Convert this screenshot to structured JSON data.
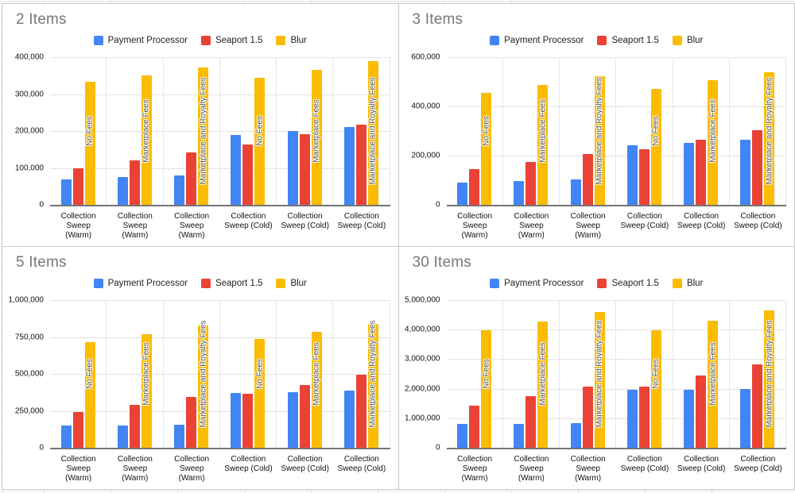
{
  "sheet": {
    "background": "#ffffff",
    "gridline_color": "#e2e5e2"
  },
  "panel_style": {
    "background": "#ffffff",
    "border_color": "#c9c9c9",
    "title_color": "#787878",
    "axis_color": "#757575",
    "gridline_color": "#e3e3e3"
  },
  "legend": {
    "position": "top",
    "items": [
      {
        "label": "Payment Processor",
        "color": "#4285F4"
      },
      {
        "label": "Seaport 1.5",
        "color": "#EA4335"
      },
      {
        "label": "Blur",
        "color": "#FBBC04"
      }
    ]
  },
  "categories_lines": [
    [
      "Collection",
      "Sweep",
      "(Warm)"
    ],
    [
      "Collection",
      "Sweep",
      "(Warm)"
    ],
    [
      "Collection",
      "Sweep",
      "(Warm)"
    ],
    [
      "Collection",
      "Sweep (Cold)"
    ],
    [
      "Collection",
      "Sweep (Cold)"
    ],
    [
      "Collection",
      "Sweep (Cold)"
    ]
  ],
  "chart_data": [
    {
      "type": "bar",
      "title": "2 Items",
      "categories": [
        "Collection Sweep (Warm)",
        "Collection Sweep (Warm)",
        "Collection Sweep (Warm)",
        "Collection Sweep (Cold)",
        "Collection Sweep (Cold)",
        "Collection Sweep (Cold)"
      ],
      "annotations": [
        "No Fees",
        "Marketplace Fees",
        "Marketplace and Royalty Fees",
        "No Fees",
        "Marketplace Fees",
        "Marketplace and Royalty Fees"
      ],
      "series": [
        {
          "name": "Payment Processor",
          "color": "#4285F4",
          "values": [
            68000,
            76000,
            80000,
            189000,
            199000,
            210000
          ]
        },
        {
          "name": "Seaport 1.5",
          "color": "#EA4335",
          "values": [
            100000,
            120000,
            142000,
            163000,
            191000,
            218000
          ]
        },
        {
          "name": "Blur",
          "color": "#FBBC04",
          "values": [
            333000,
            350000,
            372000,
            344000,
            365000,
            389000
          ]
        }
      ],
      "ylim": [
        0,
        400000
      ],
      "grid": true,
      "legend_position": "top",
      "yticks": [
        {
          "value": 400000,
          "label": "400,000"
        },
        {
          "value": 300000,
          "label": "300,000"
        },
        {
          "value": 200000,
          "label": "200,000"
        },
        {
          "value": 100000,
          "label": "100,000"
        },
        {
          "value": 0,
          "label": "0"
        }
      ]
    },
    {
      "type": "bar",
      "title": "3 Items",
      "categories": [
        "Collection Sweep (Warm)",
        "Collection Sweep (Warm)",
        "Collection Sweep (Warm)",
        "Collection Sweep (Cold)",
        "Collection Sweep (Cold)",
        "Collection Sweep (Cold)"
      ],
      "annotations": [
        "No Fees",
        "Marketplace Fees",
        "Marketplace and Royalty Fees",
        "No Fees",
        "Marketplace Fees",
        "Marketplace and Royalty Fees"
      ],
      "series": [
        {
          "name": "Payment Processor",
          "color": "#4285F4",
          "values": [
            90000,
            96000,
            103000,
            243000,
            251000,
            263000
          ]
        },
        {
          "name": "Seaport 1.5",
          "color": "#EA4335",
          "values": [
            145000,
            175000,
            207000,
            227000,
            266000,
            304000
          ]
        },
        {
          "name": "Blur",
          "color": "#FBBC04",
          "values": [
            455000,
            488000,
            522000,
            470000,
            505000,
            538000
          ]
        }
      ],
      "ylim": [
        0,
        600000
      ],
      "grid": true,
      "legend_position": "top",
      "yticks": [
        {
          "value": 600000,
          "label": "600,000"
        },
        {
          "value": 400000,
          "label": "400,000"
        },
        {
          "value": 200000,
          "label": "200,000"
        },
        {
          "value": 0,
          "label": "0"
        }
      ]
    },
    {
      "type": "bar",
      "title": "5 Items",
      "categories": [
        "Collection Sweep (Warm)",
        "Collection Sweep (Warm)",
        "Collection Sweep (Warm)",
        "Collection Sweep (Cold)",
        "Collection Sweep (Cold)",
        "Collection Sweep (Cold)"
      ],
      "annotations": [
        "No Fees",
        "Marketplace Fees",
        "Marketplace and Royalty Fees",
        "No Fees",
        "Marketplace Fees",
        "Marketplace and Royalty Fees"
      ],
      "series": [
        {
          "name": "Payment Processor",
          "color": "#4285F4",
          "values": [
            149000,
            153000,
            157000,
            370000,
            377000,
            388000
          ]
        },
        {
          "name": "Seaport 1.5",
          "color": "#EA4335",
          "values": [
            244000,
            293000,
            346000,
            367000,
            425000,
            495000
          ]
        },
        {
          "name": "Blur",
          "color": "#FBBC04",
          "values": [
            714000,
            767000,
            828000,
            735000,
            786000,
            840000
          ]
        }
      ],
      "ylim": [
        0,
        1000000
      ],
      "grid": true,
      "legend_position": "top",
      "yticks": [
        {
          "value": 1000000,
          "label": "1,000,000"
        },
        {
          "value": 750000,
          "label": "750,000"
        },
        {
          "value": 500000,
          "label": "500,000"
        },
        {
          "value": 250000,
          "label": "250,000"
        },
        {
          "value": 0,
          "label": "0"
        }
      ]
    },
    {
      "type": "bar",
      "title": "30 Items",
      "categories": [
        "Collection Sweep (Warm)",
        "Collection Sweep (Warm)",
        "Collection Sweep (Warm)",
        "Collection Sweep (Cold)",
        "Collection Sweep (Cold)",
        "Collection Sweep (Cold)"
      ],
      "annotations": [
        "No Fees",
        "Marketplace Fees",
        "Marketplace and Royalty Fees",
        "No Fees",
        "Marketplace Fees",
        "Marketplace and Royalty Fees"
      ],
      "series": [
        {
          "name": "Payment Processor",
          "color": "#4285F4",
          "values": [
            815000,
            820000,
            845000,
            1950000,
            1955000,
            1985000
          ]
        },
        {
          "name": "Seaport 1.5",
          "color": "#EA4335",
          "values": [
            1420000,
            1740000,
            2060000,
            2080000,
            2440000,
            2830000
          ]
        },
        {
          "name": "Blur",
          "color": "#FBBC04",
          "values": [
            3970000,
            4270000,
            4600000,
            3990000,
            4300000,
            4640000
          ]
        }
      ],
      "ylim": [
        0,
        5000000
      ],
      "grid": true,
      "legend_position": "top",
      "yticks": [
        {
          "value": 5000000,
          "label": "5,000,000"
        },
        {
          "value": 4000000,
          "label": "4,000,000"
        },
        {
          "value": 3000000,
          "label": "3,000,000"
        },
        {
          "value": 2000000,
          "label": "2,000,000"
        },
        {
          "value": 1000000,
          "label": "1,000,000"
        },
        {
          "value": 0,
          "label": "0"
        }
      ]
    }
  ]
}
